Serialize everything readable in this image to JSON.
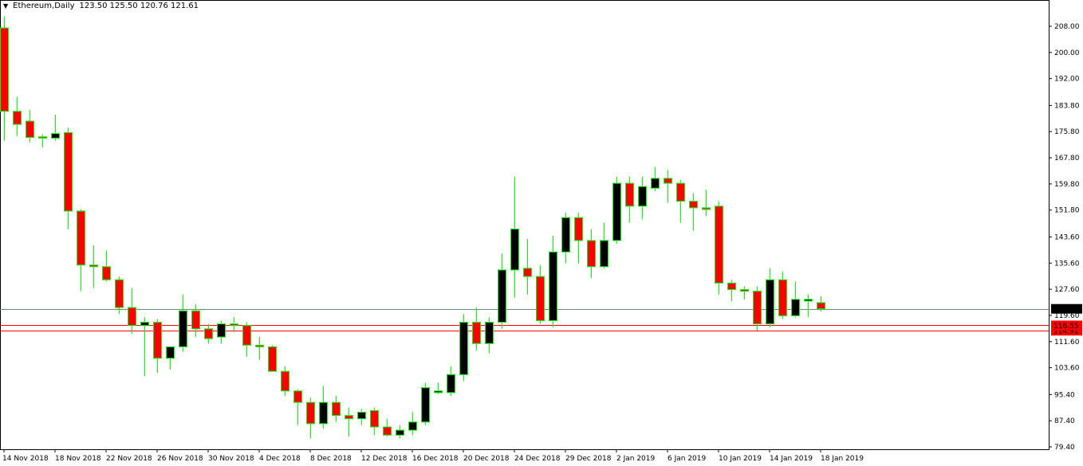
{
  "header": {
    "symbol": "Ethereum,Daily",
    "ohlc": "123.50 125.50 120.76 121.61",
    "menu_icon": "triangle-down-icon"
  },
  "colors": {
    "background": "#ffffff",
    "frame": "#000000",
    "bull_body": "#000000",
    "bear_body": "#ff0000",
    "wick": "#00ff00",
    "price_line": "#6b8e6b",
    "level_line": "#ff0000",
    "price_tag_bg": "#000000",
    "level_tag_bg": "#ff0000"
  },
  "price_tags": {
    "current": "121.61",
    "level1": "116.55",
    "level2": "114.91"
  },
  "chart_data": {
    "type": "candlestick",
    "title": "Ethereum,Daily",
    "ylim": [
      79.4,
      211.0
    ],
    "y_ticks": [
      {
        "value": 208.0,
        "label": "208.00"
      },
      {
        "value": 200.0,
        "label": "200.00"
      },
      {
        "value": 192.0,
        "label": "192.00"
      },
      {
        "value": 183.8,
        "label": "183.80"
      },
      {
        "value": 175.8,
        "label": "175.80"
      },
      {
        "value": 167.8,
        "label": "167.80"
      },
      {
        "value": 159.8,
        "label": "159.80"
      },
      {
        "value": 151.8,
        "label": "151.80"
      },
      {
        "value": 143.6,
        "label": "143.60"
      },
      {
        "value": 135.6,
        "label": "135.60"
      },
      {
        "value": 127.6,
        "label": "127.60"
      },
      {
        "value": 119.6,
        "label": "119.60"
      },
      {
        "value": 111.6,
        "label": "111.60"
      },
      {
        "value": 103.6,
        "label": "103.60"
      },
      {
        "value": 95.4,
        "label": "95.40"
      },
      {
        "value": 87.4,
        "label": "87.40"
      },
      {
        "value": 79.4,
        "label": "79.40"
      }
    ],
    "x_ticks": [
      {
        "index": 0,
        "label": "14 Nov 2018"
      },
      {
        "index": 4,
        "label": "18 Nov 2018"
      },
      {
        "index": 8,
        "label": "22 Nov 2018"
      },
      {
        "index": 12,
        "label": "26 Nov 2018"
      },
      {
        "index": 16,
        "label": "30 Nov 2018"
      },
      {
        "index": 20,
        "label": "4 Dec 2018"
      },
      {
        "index": 24,
        "label": "8 Dec 2018"
      },
      {
        "index": 28,
        "label": "12 Dec 2018"
      },
      {
        "index": 32,
        "label": "16 Dec 2018"
      },
      {
        "index": 36,
        "label": "20 Dec 2018"
      },
      {
        "index": 40,
        "label": "24 Dec 2018"
      },
      {
        "index": 44,
        "label": "29 Dec 2018"
      },
      {
        "index": 48,
        "label": "2 Jan 2019"
      },
      {
        "index": 52,
        "label": "6 Jan 2019"
      },
      {
        "index": 56,
        "label": "10 Jan 2019"
      },
      {
        "index": 60,
        "label": "14 Jan 2019"
      },
      {
        "index": 64,
        "label": "18 Jan 2019"
      }
    ],
    "horizontal_lines": [
      {
        "value": 121.61,
        "kind": "price"
      },
      {
        "value": 116.55,
        "kind": "level"
      },
      {
        "value": 114.91,
        "kind": "level"
      }
    ],
    "candles": [
      {
        "o": 207.5,
        "h": 211.0,
        "l": 173.0,
        "c": 182.0
      },
      {
        "o": 182.0,
        "h": 186.5,
        "l": 174.5,
        "c": 178.0
      },
      {
        "o": 179.0,
        "h": 182.5,
        "l": 172.5,
        "c": 174.0
      },
      {
        "o": 174.2,
        "h": 175.0,
        "l": 171.0,
        "c": 173.8
      },
      {
        "o": 173.8,
        "h": 181.0,
        "l": 173.0,
        "c": 175.2
      },
      {
        "o": 175.5,
        "h": 177.0,
        "l": 146.0,
        "c": 151.5
      },
      {
        "o": 151.5,
        "h": 152.0,
        "l": 127.0,
        "c": 135.0
      },
      {
        "o": 135.0,
        "h": 141.0,
        "l": 128.0,
        "c": 134.5
      },
      {
        "o": 134.5,
        "h": 139.5,
        "l": 130.0,
        "c": 130.5
      },
      {
        "o": 130.5,
        "h": 131.5,
        "l": 120.0,
        "c": 122.0
      },
      {
        "o": 122.0,
        "h": 128.0,
        "l": 114.0,
        "c": 116.5
      },
      {
        "o": 116.5,
        "h": 119.0,
        "l": 101.0,
        "c": 117.5
      },
      {
        "o": 117.5,
        "h": 118.5,
        "l": 102.0,
        "c": 106.5
      },
      {
        "o": 106.5,
        "h": 110.0,
        "l": 103.0,
        "c": 110.0
      },
      {
        "o": 110.0,
        "h": 126.0,
        "l": 108.5,
        "c": 121.0
      },
      {
        "o": 121.0,
        "h": 123.0,
        "l": 113.0,
        "c": 115.5
      },
      {
        "o": 115.5,
        "h": 117.0,
        "l": 111.0,
        "c": 112.5
      },
      {
        "o": 113.0,
        "h": 118.0,
        "l": 111.0,
        "c": 117.0
      },
      {
        "o": 117.0,
        "h": 119.0,
        "l": 114.5,
        "c": 116.5
      },
      {
        "o": 116.5,
        "h": 117.5,
        "l": 107.0,
        "c": 110.5
      },
      {
        "o": 110.5,
        "h": 113.0,
        "l": 106.0,
        "c": 110.0
      },
      {
        "o": 110.0,
        "h": 110.5,
        "l": 103.0,
        "c": 102.5
      },
      {
        "o": 102.5,
        "h": 104.0,
        "l": 95.0,
        "c": 96.5
      },
      {
        "o": 96.5,
        "h": 97.0,
        "l": 86.0,
        "c": 93.0
      },
      {
        "o": 93.0,
        "h": 94.5,
        "l": 82.0,
        "c": 86.5
      },
      {
        "o": 86.5,
        "h": 98.0,
        "l": 85.0,
        "c": 93.0
      },
      {
        "o": 93.0,
        "h": 95.0,
        "l": 87.0,
        "c": 89.0
      },
      {
        "o": 89.0,
        "h": 91.5,
        "l": 82.5,
        "c": 88.0
      },
      {
        "o": 88.0,
        "h": 91.0,
        "l": 86.0,
        "c": 90.0
      },
      {
        "o": 90.5,
        "h": 91.5,
        "l": 83.0,
        "c": 85.5
      },
      {
        "o": 85.5,
        "h": 88.0,
        "l": 82.5,
        "c": 83.0
      },
      {
        "o": 83.0,
        "h": 86.0,
        "l": 82.0,
        "c": 84.5
      },
      {
        "o": 84.5,
        "h": 90.0,
        "l": 83.0,
        "c": 87.0
      },
      {
        "o": 87.0,
        "h": 99.0,
        "l": 86.0,
        "c": 97.5
      },
      {
        "o": 96.0,
        "h": 99.0,
        "l": 95.5,
        "c": 96.5
      },
      {
        "o": 96.0,
        "h": 104.0,
        "l": 95.0,
        "c": 101.5
      },
      {
        "o": 101.5,
        "h": 120.0,
        "l": 99.5,
        "c": 117.5
      },
      {
        "o": 117.5,
        "h": 122.0,
        "l": 109.0,
        "c": 111.0
      },
      {
        "o": 111.0,
        "h": 119.0,
        "l": 108.0,
        "c": 117.5
      },
      {
        "o": 117.5,
        "h": 138.5,
        "l": 115.5,
        "c": 133.5
      },
      {
        "o": 133.5,
        "h": 162.0,
        "l": 125.0,
        "c": 146.0
      },
      {
        "o": 134.0,
        "h": 143.0,
        "l": 126.0,
        "c": 131.5
      },
      {
        "o": 131.5,
        "h": 135.0,
        "l": 117.0,
        "c": 118.0
      },
      {
        "o": 118.0,
        "h": 144.0,
        "l": 116.0,
        "c": 139.0
      },
      {
        "o": 139.0,
        "h": 151.0,
        "l": 135.5,
        "c": 149.5
      },
      {
        "o": 149.5,
        "h": 151.0,
        "l": 135.5,
        "c": 142.5
      },
      {
        "o": 142.5,
        "h": 146.0,
        "l": 131.0,
        "c": 134.5
      },
      {
        "o": 134.5,
        "h": 148.0,
        "l": 134.0,
        "c": 142.5
      },
      {
        "o": 142.5,
        "h": 162.0,
        "l": 141.5,
        "c": 160.0
      },
      {
        "o": 160.0,
        "h": 162.0,
        "l": 148.0,
        "c": 153.0
      },
      {
        "o": 153.0,
        "h": 162.0,
        "l": 149.0,
        "c": 159.0
      },
      {
        "o": 158.5,
        "h": 165.0,
        "l": 157.5,
        "c": 161.5
      },
      {
        "o": 161.5,
        "h": 164.0,
        "l": 154.0,
        "c": 160.0
      },
      {
        "o": 160.0,
        "h": 161.0,
        "l": 148.0,
        "c": 154.5
      },
      {
        "o": 154.5,
        "h": 157.0,
        "l": 145.5,
        "c": 152.5
      },
      {
        "o": 152.5,
        "h": 158.0,
        "l": 150.0,
        "c": 152.0
      },
      {
        "o": 153.0,
        "h": 154.5,
        "l": 126.0,
        "c": 129.5
      },
      {
        "o": 129.5,
        "h": 130.5,
        "l": 124.0,
        "c": 127.5
      },
      {
        "o": 127.5,
        "h": 128.5,
        "l": 124.5,
        "c": 127.0
      },
      {
        "o": 127.0,
        "h": 128.5,
        "l": 115.0,
        "c": 117.0
      },
      {
        "o": 117.0,
        "h": 134.0,
        "l": 116.0,
        "c": 130.5
      },
      {
        "o": 130.5,
        "h": 133.0,
        "l": 118.5,
        "c": 119.5
      },
      {
        "o": 119.5,
        "h": 130.0,
        "l": 119.0,
        "c": 124.5
      },
      {
        "o": 124.0,
        "h": 126.0,
        "l": 119.0,
        "c": 124.5
      },
      {
        "o": 123.5,
        "h": 125.5,
        "l": 120.76,
        "c": 121.61
      }
    ]
  }
}
